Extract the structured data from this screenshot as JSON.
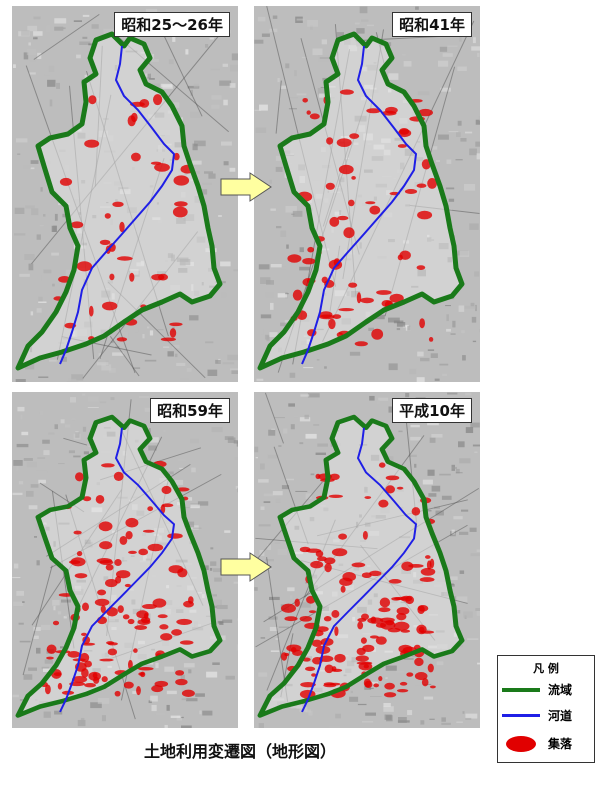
{
  "panels": [
    {
      "label": "昭和25〜26年",
      "settlement_level": 0.15
    },
    {
      "label": "昭和41年",
      "settlement_level": 0.35
    },
    {
      "label": "昭和59年",
      "settlement_level": 0.65
    },
    {
      "label": "平成10年",
      "settlement_level": 0.8
    }
  ],
  "legend": {
    "title": "凡 例",
    "items": [
      {
        "label": "流域",
        "color": "#1a7a1a"
      },
      {
        "label": "河道",
        "color": "#1f1fe6"
      },
      {
        "label": "集落",
        "color": "#e10000"
      }
    ]
  },
  "caption": "土地利用変遷図（地形図）",
  "colors": {
    "watershed": "#1a7a1a",
    "river": "#1f1fe6",
    "settlement": "#e10000",
    "arrow_fill": "#ffffa0"
  }
}
